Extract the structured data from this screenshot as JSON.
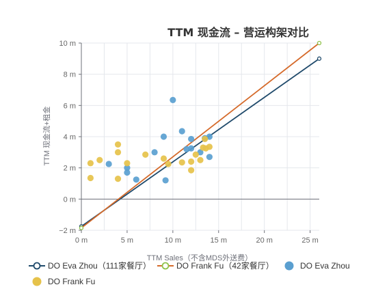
{
  "chart_data": {
    "type": "scatter",
    "title": "TTM 现金流 – 营运构架对比",
    "xlabel": "TTM Sales（不含MDS外送费）",
    "ylabel": "TTM 现金流+租金",
    "xlim": [
      0,
      26
    ],
    "ylim": [
      -2,
      10
    ],
    "x_ticks": [
      "0 m",
      "5 m",
      "10 m",
      "15 m",
      "20 m",
      "25 m"
    ],
    "x_tick_values": [
      0,
      5,
      10,
      15,
      20,
      25
    ],
    "y_ticks": [
      "−2 m",
      "0 m",
      "2 m",
      "4 m",
      "6 m",
      "8 m",
      "10 m"
    ],
    "y_tick_values": [
      -2,
      0,
      2,
      4,
      6,
      8,
      10
    ],
    "grid": true,
    "legend_position": "bottom",
    "series": [
      {
        "name": "DO Eva Zhou（111家餐厅）",
        "kind": "line",
        "color": "#1f4a6b",
        "points": [
          {
            "x": 0,
            "y": -1.75
          },
          {
            "x": 26,
            "y": 9
          }
        ]
      },
      {
        "name": "DO Frank Fu（42家餐厅）",
        "kind": "line",
        "color": "#d56a2a",
        "marker_color": "#8fc24a",
        "points": [
          {
            "x": 0,
            "y": -1.85
          },
          {
            "x": 26,
            "y": 10
          }
        ]
      },
      {
        "name": "DO Eva Zhou",
        "kind": "scatter",
        "color": "#5a9fd0",
        "points": [
          {
            "x": 3,
            "y": 2.25
          },
          {
            "x": 5,
            "y": 2.0
          },
          {
            "x": 5,
            "y": 1.7
          },
          {
            "x": 6,
            "y": 1.25
          },
          {
            "x": 8,
            "y": 3.0
          },
          {
            "x": 9,
            "y": 4.0
          },
          {
            "x": 9.2,
            "y": 1.2
          },
          {
            "x": 10,
            "y": 6.35
          },
          {
            "x": 11,
            "y": 4.35
          },
          {
            "x": 11.5,
            "y": 3.2
          },
          {
            "x": 12,
            "y": 3.85
          },
          {
            "x": 12,
            "y": 3.25
          },
          {
            "x": 13,
            "y": 3.0
          },
          {
            "x": 13.5,
            "y": 3.9
          },
          {
            "x": 14,
            "y": 4.0
          },
          {
            "x": 14,
            "y": 2.7
          }
        ]
      },
      {
        "name": "DO Frank Fu",
        "kind": "scatter",
        "color": "#e6c24a",
        "points": [
          {
            "x": 1,
            "y": 2.3
          },
          {
            "x": 1,
            "y": 1.35
          },
          {
            "x": 2,
            "y": 2.5
          },
          {
            "x": 4,
            "y": 3.5
          },
          {
            "x": 4,
            "y": 3.0
          },
          {
            "x": 4,
            "y": 1.3
          },
          {
            "x": 5,
            "y": 2.3
          },
          {
            "x": 7,
            "y": 2.85
          },
          {
            "x": 9,
            "y": 2.6
          },
          {
            "x": 9.5,
            "y": 2.25
          },
          {
            "x": 11,
            "y": 2.35
          },
          {
            "x": 12,
            "y": 2.4
          },
          {
            "x": 12,
            "y": 1.85
          },
          {
            "x": 12.5,
            "y": 2.85
          },
          {
            "x": 13,
            "y": 2.5
          },
          {
            "x": 13.3,
            "y": 3.3
          },
          {
            "x": 13.6,
            "y": 3.25
          },
          {
            "x": 14,
            "y": 3.35
          },
          {
            "x": 13.5,
            "y": 3.85
          }
        ]
      }
    ]
  }
}
